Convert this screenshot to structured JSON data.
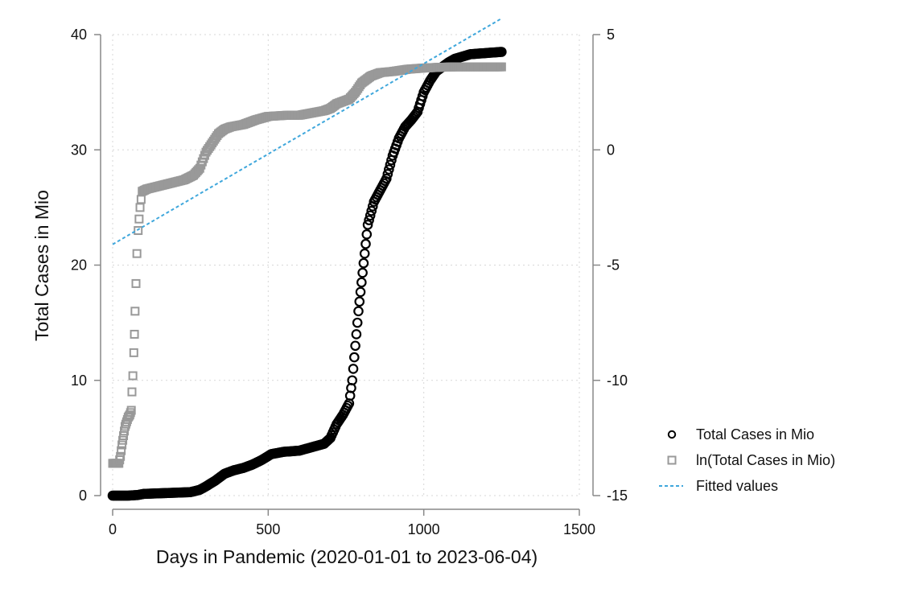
{
  "chart_data": {
    "type": "scatter",
    "title": "",
    "xlabel": "Days in Pandemic (2020-01-01 to 2023-06-04)",
    "ylabel": "Total Cases in Mio",
    "y2label": "",
    "xlim": [
      0,
      1500
    ],
    "ylim": [
      0,
      40
    ],
    "y2lim": [
      -15,
      5
    ],
    "xticks": [
      "0",
      "500",
      "1000",
      "1500"
    ],
    "yticks": [
      "0",
      "10",
      "20",
      "30",
      "40"
    ],
    "y2ticks": [
      "-15",
      "-10",
      "-5",
      "0",
      "5"
    ],
    "grid": true,
    "legend_position": "right",
    "series": [
      {
        "name": "Total Cases in Mio",
        "marker": "circle",
        "axis": "left",
        "color": "#000000",
        "points": [
          [
            0,
            0
          ],
          [
            50,
            0
          ],
          [
            80,
            0.05
          ],
          [
            100,
            0.15
          ],
          [
            150,
            0.2
          ],
          [
            200,
            0.25
          ],
          [
            250,
            0.3
          ],
          [
            280,
            0.5
          ],
          [
            300,
            0.8
          ],
          [
            330,
            1.3
          ],
          [
            360,
            1.9
          ],
          [
            390,
            2.2
          ],
          [
            420,
            2.4
          ],
          [
            450,
            2.7
          ],
          [
            480,
            3.1
          ],
          [
            510,
            3.6
          ],
          [
            550,
            3.8
          ],
          [
            600,
            3.9
          ],
          [
            640,
            4.2
          ],
          [
            680,
            4.5
          ],
          [
            700,
            5.0
          ],
          [
            720,
            6.2
          ],
          [
            740,
            7.0
          ],
          [
            760,
            8.0
          ],
          [
            770,
            10.0
          ],
          [
            780,
            13.0
          ],
          [
            790,
            16.0
          ],
          [
            800,
            18.5
          ],
          [
            810,
            21.0
          ],
          [
            820,
            23.5
          ],
          [
            840,
            25.5
          ],
          [
            860,
            26.5
          ],
          [
            880,
            27.5
          ],
          [
            900,
            29.5
          ],
          [
            920,
            31.0
          ],
          [
            940,
            32.0
          ],
          [
            960,
            32.6
          ],
          [
            980,
            33.3
          ],
          [
            1000,
            35.0
          ],
          [
            1020,
            36.0
          ],
          [
            1040,
            36.8
          ],
          [
            1060,
            37.2
          ],
          [
            1080,
            37.6
          ],
          [
            1100,
            37.9
          ],
          [
            1150,
            38.3
          ],
          [
            1200,
            38.4
          ],
          [
            1250,
            38.5
          ]
        ]
      },
      {
        "name": "ln(Total Cases in Mio)",
        "marker": "square",
        "axis": "right",
        "color": "#999999",
        "points": [
          [
            0,
            -13.6
          ],
          [
            5,
            -13.6
          ],
          [
            10,
            -13.6
          ],
          [
            15,
            -13.6
          ],
          [
            20,
            -13.6
          ],
          [
            25,
            -13.3
          ],
          [
            30,
            -12.8
          ],
          [
            35,
            -12.4
          ],
          [
            40,
            -12.0
          ],
          [
            45,
            -11.8
          ],
          [
            50,
            -11.6
          ],
          [
            55,
            -11.5
          ],
          [
            60,
            -11.3
          ],
          [
            62,
            -10.5
          ],
          [
            65,
            -9.8
          ],
          [
            68,
            -8.8
          ],
          [
            70,
            -8.0
          ],
          [
            72,
            -7.0
          ],
          [
            75,
            -5.8
          ],
          [
            78,
            -4.5
          ],
          [
            82,
            -3.5
          ],
          [
            88,
            -2.5
          ],
          [
            95,
            -1.8
          ],
          [
            110,
            -1.7
          ],
          [
            140,
            -1.6
          ],
          [
            170,
            -1.5
          ],
          [
            200,
            -1.4
          ],
          [
            230,
            -1.3
          ],
          [
            260,
            -1.1
          ],
          [
            280,
            -0.8
          ],
          [
            300,
            -0.1
          ],
          [
            320,
            0.3
          ],
          [
            340,
            0.7
          ],
          [
            360,
            0.9
          ],
          [
            380,
            1.0
          ],
          [
            420,
            1.1
          ],
          [
            460,
            1.3
          ],
          [
            500,
            1.45
          ],
          [
            560,
            1.5
          ],
          [
            600,
            1.5
          ],
          [
            640,
            1.6
          ],
          [
            680,
            1.7
          ],
          [
            700,
            1.8
          ],
          [
            720,
            2.0
          ],
          [
            740,
            2.1
          ],
          [
            760,
            2.2
          ],
          [
            780,
            2.5
          ],
          [
            800,
            2.9
          ],
          [
            830,
            3.2
          ],
          [
            860,
            3.35
          ],
          [
            900,
            3.4
          ],
          [
            950,
            3.5
          ],
          [
            1000,
            3.55
          ],
          [
            1050,
            3.58
          ],
          [
            1100,
            3.6
          ],
          [
            1150,
            3.6
          ],
          [
            1200,
            3.6
          ],
          [
            1250,
            3.6
          ]
        ]
      },
      {
        "name": "Fitted values",
        "marker": "dashed-line",
        "axis": "right",
        "color": "#3fa7dc",
        "points": [
          [
            0,
            -4.1
          ],
          [
            1250,
            5.7
          ]
        ]
      }
    ]
  }
}
